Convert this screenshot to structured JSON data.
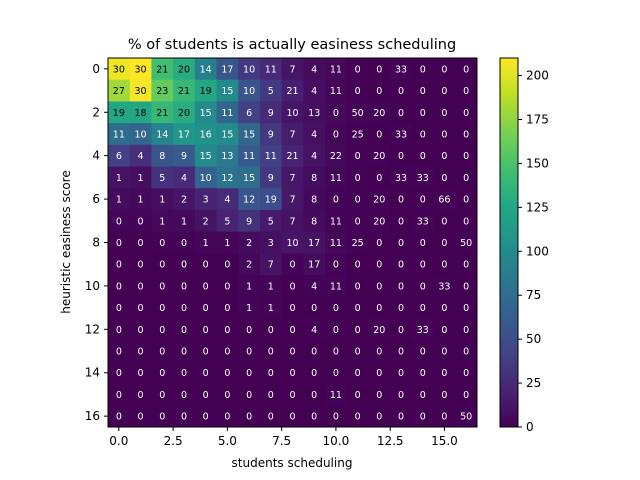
{
  "chart_data": {
    "type": "heatmap",
    "title": "% of students is actually easiness scheduling",
    "xlabel": "students scheduling",
    "ylabel": "heuristic easiness score",
    "x_ticks": [
      "0.0",
      "2.5",
      "5.0",
      "7.5",
      "10.0",
      "12.5",
      "15.0"
    ],
    "x_tick_values": [
      0,
      2.5,
      5,
      7.5,
      10,
      12.5,
      15
    ],
    "y_ticks": [
      "0",
      "2",
      "4",
      "6",
      "8",
      "10",
      "12",
      "14",
      "16"
    ],
    "y_tick_values": [
      0,
      2,
      4,
      6,
      8,
      10,
      12,
      14,
      16
    ],
    "colorbar": {
      "min": 0,
      "max": 210,
      "ticks": [
        "0",
        "25",
        "50",
        "75",
        "100",
        "125",
        "150",
        "175",
        "200"
      ],
      "tick_values": [
        0,
        25,
        50,
        75,
        100,
        125,
        150,
        175,
        200
      ],
      "colormap": "viridis"
    },
    "cell_labels": [
      [
        30,
        30,
        21,
        20,
        14,
        17,
        10,
        11,
        7,
        4,
        11,
        0,
        0,
        33,
        0,
        0,
        0
      ],
      [
        27,
        30,
        23,
        21,
        19,
        15,
        10,
        5,
        21,
        4,
        11,
        0,
        0,
        0,
        0,
        0,
        0
      ],
      [
        19,
        18,
        21,
        20,
        15,
        11,
        6,
        9,
        10,
        13,
        0,
        50,
        20,
        0,
        0,
        0,
        0
      ],
      [
        11,
        10,
        14,
        17,
        16,
        15,
        15,
        9,
        7,
        4,
        0,
        25,
        0,
        33,
        0,
        0,
        0
      ],
      [
        6,
        4,
        8,
        9,
        15,
        13,
        11,
        11,
        21,
        4,
        22,
        0,
        20,
        0,
        0,
        0,
        0
      ],
      [
        1,
        1,
        5,
        4,
        10,
        12,
        15,
        9,
        7,
        8,
        11,
        0,
        0,
        33,
        33,
        0,
        0
      ],
      [
        1,
        1,
        1,
        2,
        3,
        4,
        12,
        19,
        7,
        8,
        0,
        0,
        20,
        0,
        0,
        66,
        0
      ],
      [
        0,
        0,
        1,
        1,
        2,
        5,
        9,
        5,
        7,
        8,
        11,
        0,
        20,
        0,
        33,
        0,
        0
      ],
      [
        0,
        0,
        0,
        0,
        1,
        1,
        2,
        3,
        10,
        17,
        11,
        25,
        0,
        0,
        0,
        0,
        50
      ],
      [
        0,
        0,
        0,
        0,
        0,
        0,
        2,
        7,
        0,
        17,
        0,
        0,
        0,
        0,
        0,
        0,
        0
      ],
      [
        0,
        0,
        0,
        0,
        0,
        0,
        1,
        1,
        0,
        4,
        11,
        0,
        0,
        0,
        0,
        33,
        0
      ],
      [
        0,
        0,
        0,
        0,
        0,
        0,
        1,
        1,
        0,
        0,
        0,
        0,
        0,
        0,
        0,
        0,
        0
      ],
      [
        0,
        0,
        0,
        0,
        0,
        0,
        0,
        0,
        0,
        4,
        0,
        0,
        20,
        0,
        33,
        0,
        0
      ],
      [
        0,
        0,
        0,
        0,
        0,
        0,
        0,
        0,
        0,
        0,
        0,
        0,
        0,
        0,
        0,
        0,
        0
      ],
      [
        0,
        0,
        0,
        0,
        0,
        0,
        0,
        0,
        0,
        0,
        0,
        0,
        0,
        0,
        0,
        0,
        0
      ],
      [
        0,
        0,
        0,
        0,
        0,
        0,
        0,
        0,
        0,
        0,
        11,
        0,
        0,
        0,
        0,
        0,
        0
      ],
      [
        0,
        0,
        0,
        0,
        0,
        0,
        0,
        0,
        0,
        0,
        0,
        0,
        0,
        0,
        0,
        0,
        50
      ]
    ],
    "cell_values": [
      [
        205,
        210,
        145,
        130,
        90,
        55,
        35,
        25,
        12,
        6,
        4,
        1,
        0,
        1,
        0,
        0,
        0
      ],
      [
        180,
        208,
        160,
        140,
        125,
        100,
        55,
        35,
        18,
        8,
        3,
        1,
        0,
        0,
        0,
        0,
        0
      ],
      [
        125,
        125,
        140,
        130,
        100,
        70,
        40,
        25,
        12,
        8,
        4,
        2,
        1,
        0,
        0,
        0,
        0
      ],
      [
        75,
        70,
        95,
        110,
        105,
        100,
        70,
        35,
        16,
        9,
        3,
        1,
        0,
        1,
        0,
        0,
        0
      ],
      [
        40,
        28,
        55,
        60,
        100,
        85,
        60,
        40,
        20,
        10,
        5,
        1,
        1,
        0,
        0,
        0,
        0
      ],
      [
        10,
        8,
        30,
        25,
        65,
        80,
        75,
        35,
        14,
        7,
        3,
        1,
        0,
        1,
        1,
        0,
        0
      ],
      [
        6,
        5,
        8,
        12,
        20,
        25,
        55,
        50,
        14,
        5,
        2,
        1,
        1,
        0,
        0,
        1,
        0
      ],
      [
        2,
        2,
        4,
        5,
        10,
        20,
        30,
        15,
        10,
        6,
        2,
        1,
        1,
        0,
        1,
        0,
        0
      ],
      [
        0,
        0,
        1,
        1,
        3,
        3,
        6,
        8,
        12,
        10,
        4,
        1,
        0,
        0,
        0,
        0,
        1
      ],
      [
        0,
        0,
        0,
        0,
        0,
        0,
        4,
        10,
        2,
        6,
        1,
        0,
        0,
        0,
        0,
        0,
        0
      ],
      [
        0,
        0,
        0,
        0,
        0,
        0,
        2,
        2,
        0,
        2,
        2,
        0,
        0,
        0,
        0,
        1,
        0
      ],
      [
        0,
        0,
        0,
        0,
        0,
        0,
        2,
        1,
        0,
        0,
        0,
        0,
        0,
        0,
        0,
        0,
        0
      ],
      [
        0,
        0,
        0,
        0,
        0,
        0,
        0,
        0,
        0,
        1,
        0,
        0,
        1,
        0,
        1,
        0,
        0
      ],
      [
        0,
        0,
        0,
        0,
        0,
        0,
        0,
        0,
        0,
        0,
        0,
        0,
        0,
        0,
        0,
        0,
        0
      ],
      [
        0,
        0,
        0,
        0,
        0,
        0,
        0,
        0,
        0,
        0,
        0,
        0,
        0,
        0,
        0,
        0,
        0
      ],
      [
        0,
        0,
        0,
        0,
        0,
        0,
        0,
        0,
        0,
        0,
        1,
        0,
        0,
        0,
        0,
        0,
        0
      ],
      [
        0,
        0,
        0,
        0,
        0,
        0,
        0,
        0,
        0,
        0,
        0,
        0,
        0,
        0,
        0,
        0,
        1
      ]
    ]
  }
}
